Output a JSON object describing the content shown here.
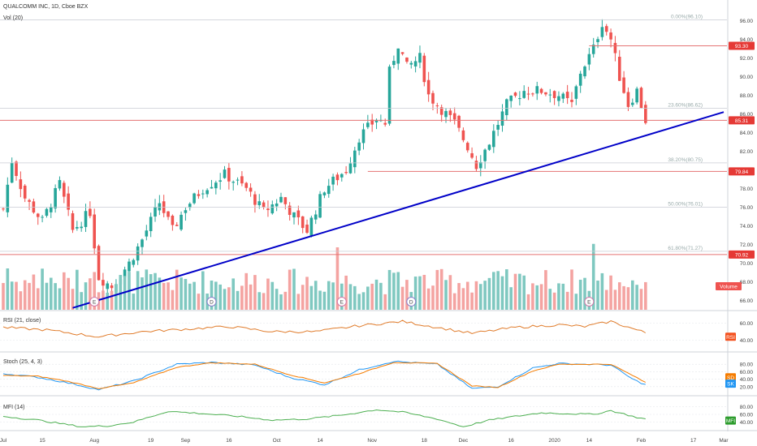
{
  "header": {
    "symbol_title": "QUALCOMM INC, 1D, Cboe BZX",
    "volume_indicator": "Vol (20)"
  },
  "colors": {
    "up": "#26a69a",
    "down": "#ef5350",
    "up_volume": "#7fc8c0",
    "down_volume": "#f4a3a1",
    "trendline": "#0000c8",
    "hline": "#e57373",
    "rsi_line": "#e07b2a",
    "stoch_k": "#2196f3",
    "stoch_d": "#f57c00",
    "mfi_line": "#4caf50",
    "rsi_tag": "#f4511e",
    "mfi_tag": "#2e9d2e"
  },
  "price_axis": {
    "ticks": [
      "96.00",
      "94.00",
      "92.00",
      "90.00",
      "88.00",
      "86.00",
      "84.00",
      "82.00",
      "80.00",
      "78.00",
      "76.00",
      "74.00",
      "72.00",
      "70.00",
      "68.00",
      "66.00"
    ]
  },
  "price_tags": [
    {
      "label": "93.30",
      "value": 93.3
    },
    {
      "label": "85.31",
      "value": 85.31
    },
    {
      "label": "79.84",
      "value": 79.84
    },
    {
      "label": "70.92",
      "value": 70.92
    }
  ],
  "volume_tag": "Volume",
  "fib_levels": [
    {
      "label": "0.00%(96.10)",
      "value": 96.1
    },
    {
      "label": "23.60%(86.62)",
      "value": 86.62
    },
    {
      "label": "38.20%(80.75)",
      "value": 80.75
    },
    {
      "label": "50.00%(76.01)",
      "value": 76.01
    },
    {
      "label": "61.80%(71.27)",
      "value": 71.27
    }
  ],
  "event_markers": [
    {
      "label": "E",
      "date_index": 21
    },
    {
      "label": "D",
      "date_index": 48
    },
    {
      "label": "E",
      "date_index": 78
    },
    {
      "label": "D",
      "date_index": 94
    },
    {
      "label": "E",
      "date_index": 135
    }
  ],
  "x_axis_labels": [
    {
      "label": "Jul",
      "date_index": 0
    },
    {
      "label": "15",
      "date_index": 9
    },
    {
      "label": "Aug",
      "date_index": 21
    },
    {
      "label": "19",
      "date_index": 34
    },
    {
      "label": "Sep",
      "date_index": 42
    },
    {
      "label": "16",
      "date_index": 52
    },
    {
      "label": "Oct",
      "date_index": 63
    },
    {
      "label": "14",
      "date_index": 73
    },
    {
      "label": "Nov",
      "date_index": 85
    },
    {
      "label": "18",
      "date_index": 97
    },
    {
      "label": "Dec",
      "date_index": 106
    },
    {
      "label": "16",
      "date_index": 117
    },
    {
      "label": "2020",
      "date_index": 127
    },
    {
      "label": "14",
      "date_index": 135
    },
    {
      "label": "Feb",
      "date_index": 147
    },
    {
      "label": "17",
      "date_index": 159
    },
    {
      "label": "Mar",
      "date_index": 166
    }
  ],
  "panels": {
    "rsi": {
      "title": "RSI (21, close)",
      "ticks": [
        "60.00",
        "40.00"
      ],
      "tag": "RSI"
    },
    "stoch": {
      "title": "Stoch (25, 4, 3)",
      "ticks": [
        "80.00",
        "60.00",
        "40.00",
        "20.00"
      ],
      "tag_d": "SD",
      "tag_k": "SK"
    },
    "mfi": {
      "title": "MFI (14)",
      "ticks": [
        "80.00",
        "60.00",
        "40.00"
      ],
      "tag": "MFI"
    }
  },
  "chart_data": {
    "type": "candlestick",
    "title": "QUALCOMM INC, 1D, Cboe BZX",
    "ylim": [
      65,
      97
    ],
    "trendline": {
      "from": {
        "date_index": 16,
        "price": 65.2
      },
      "to": {
        "date_index": 166,
        "price": 86.2
      }
    },
    "horizontal_lines": [
      93.3,
      85.31,
      79.84,
      70.92
    ],
    "series_anchors": [
      {
        "date_index": 0,
        "close": 75.8
      },
      {
        "date_index": 2,
        "close": 81.0
      },
      {
        "date_index": 5,
        "close": 77.0
      },
      {
        "date_index": 9,
        "close": 74.5
      },
      {
        "date_index": 13,
        "close": 78.5
      },
      {
        "date_index": 16,
        "close": 73.5
      },
      {
        "date_index": 20,
        "close": 75.5
      },
      {
        "date_index": 22,
        "close": 68.5
      },
      {
        "date_index": 25,
        "close": 67.5
      },
      {
        "date_index": 29,
        "close": 70.0
      },
      {
        "date_index": 32,
        "close": 72.5
      },
      {
        "date_index": 36,
        "close": 76.5
      },
      {
        "date_index": 39,
        "close": 73.5
      },
      {
        "date_index": 42,
        "close": 76.0
      },
      {
        "date_index": 46,
        "close": 78.0
      },
      {
        "date_index": 51,
        "close": 79.5
      },
      {
        "date_index": 56,
        "close": 78.0
      },
      {
        "date_index": 60,
        "close": 75.5
      },
      {
        "date_index": 64,
        "close": 77.0
      },
      {
        "date_index": 67,
        "close": 75.0
      },
      {
        "date_index": 70,
        "close": 73.5
      },
      {
        "date_index": 74,
        "close": 78.0
      },
      {
        "date_index": 79,
        "close": 80.0
      },
      {
        "date_index": 82,
        "close": 83.5
      },
      {
        "date_index": 86,
        "close": 85.5
      },
      {
        "date_index": 88,
        "close": 85.0
      },
      {
        "date_index": 89,
        "close": 90.5
      },
      {
        "date_index": 91,
        "close": 93.5
      },
      {
        "date_index": 93,
        "close": 91.0
      },
      {
        "date_index": 96,
        "close": 92.0
      },
      {
        "date_index": 98,
        "close": 88.0
      },
      {
        "date_index": 101,
        "close": 86.5
      },
      {
        "date_index": 104,
        "close": 85.0
      },
      {
        "date_index": 107,
        "close": 82.5
      },
      {
        "date_index": 109,
        "close": 80.5
      },
      {
        "date_index": 112,
        "close": 83.0
      },
      {
        "date_index": 116,
        "close": 87.0
      },
      {
        "date_index": 120,
        "close": 88.5
      },
      {
        "date_index": 124,
        "close": 88.5
      },
      {
        "date_index": 128,
        "close": 88.0
      },
      {
        "date_index": 131,
        "close": 87.0
      },
      {
        "date_index": 133,
        "close": 90.5
      },
      {
        "date_index": 136,
        "close": 93.0
      },
      {
        "date_index": 138,
        "close": 95.8
      },
      {
        "date_index": 140,
        "close": 94.0
      },
      {
        "date_index": 142,
        "close": 90.0
      },
      {
        "date_index": 144,
        "close": 87.0
      },
      {
        "date_index": 146,
        "close": 88.5
      },
      {
        "date_index": 148,
        "close": 85.3
      }
    ],
    "volume_range": [
      0,
      15
    ],
    "indicators": {
      "rsi_range": [
        30,
        70
      ],
      "rsi_anchors": [
        [
          0,
          55
        ],
        [
          10,
          52
        ],
        [
          22,
          44
        ],
        [
          32,
          50
        ],
        [
          42,
          53
        ],
        [
          52,
          56
        ],
        [
          62,
          50
        ],
        [
          72,
          50
        ],
        [
          82,
          57
        ],
        [
          88,
          60
        ],
        [
          92,
          62
        ],
        [
          100,
          55
        ],
        [
          108,
          48
        ],
        [
          118,
          55
        ],
        [
          128,
          58
        ],
        [
          134,
          56
        ],
        [
          140,
          62
        ],
        [
          146,
          52
        ],
        [
          149,
          47
        ]
      ],
      "stoch_range": [
        0,
        100
      ],
      "stoch_k_anchors": [
        [
          0,
          55
        ],
        [
          8,
          45
        ],
        [
          15,
          30
        ],
        [
          22,
          12
        ],
        [
          30,
          35
        ],
        [
          40,
          80
        ],
        [
          48,
          85
        ],
        [
          58,
          78
        ],
        [
          66,
          45
        ],
        [
          74,
          25
        ],
        [
          82,
          65
        ],
        [
          90,
          88
        ],
        [
          100,
          80
        ],
        [
          108,
          15
        ],
        [
          114,
          20
        ],
        [
          122,
          70
        ],
        [
          128,
          82
        ],
        [
          134,
          80
        ],
        [
          140,
          78
        ],
        [
          145,
          40
        ],
        [
          149,
          20
        ]
      ],
      "stoch_d_anchors": [
        [
          0,
          50
        ],
        [
          8,
          48
        ],
        [
          15,
          34
        ],
        [
          22,
          15
        ],
        [
          30,
          30
        ],
        [
          40,
          72
        ],
        [
          48,
          84
        ],
        [
          58,
          80
        ],
        [
          66,
          52
        ],
        [
          74,
          30
        ],
        [
          82,
          55
        ],
        [
          90,
          85
        ],
        [
          100,
          82
        ],
        [
          108,
          22
        ],
        [
          114,
          18
        ],
        [
          122,
          62
        ],
        [
          128,
          80
        ],
        [
          134,
          80
        ],
        [
          140,
          80
        ],
        [
          145,
          50
        ],
        [
          149,
          25
        ]
      ],
      "mfi_range": [
        20,
        100
      ],
      "mfi_anchors": [
        [
          0,
          55
        ],
        [
          8,
          45
        ],
        [
          18,
          28
        ],
        [
          24,
          30
        ],
        [
          30,
          40
        ],
        [
          38,
          68
        ],
        [
          46,
          62
        ],
        [
          54,
          55
        ],
        [
          62,
          45
        ],
        [
          70,
          48
        ],
        [
          78,
          58
        ],
        [
          86,
          72
        ],
        [
          92,
          66
        ],
        [
          100,
          48
        ],
        [
          106,
          28
        ],
        [
          112,
          45
        ],
        [
          118,
          55
        ],
        [
          124,
          64
        ],
        [
          130,
          62
        ],
        [
          136,
          60
        ],
        [
          140,
          70
        ],
        [
          146,
          52
        ],
        [
          149,
          46
        ]
      ]
    }
  }
}
